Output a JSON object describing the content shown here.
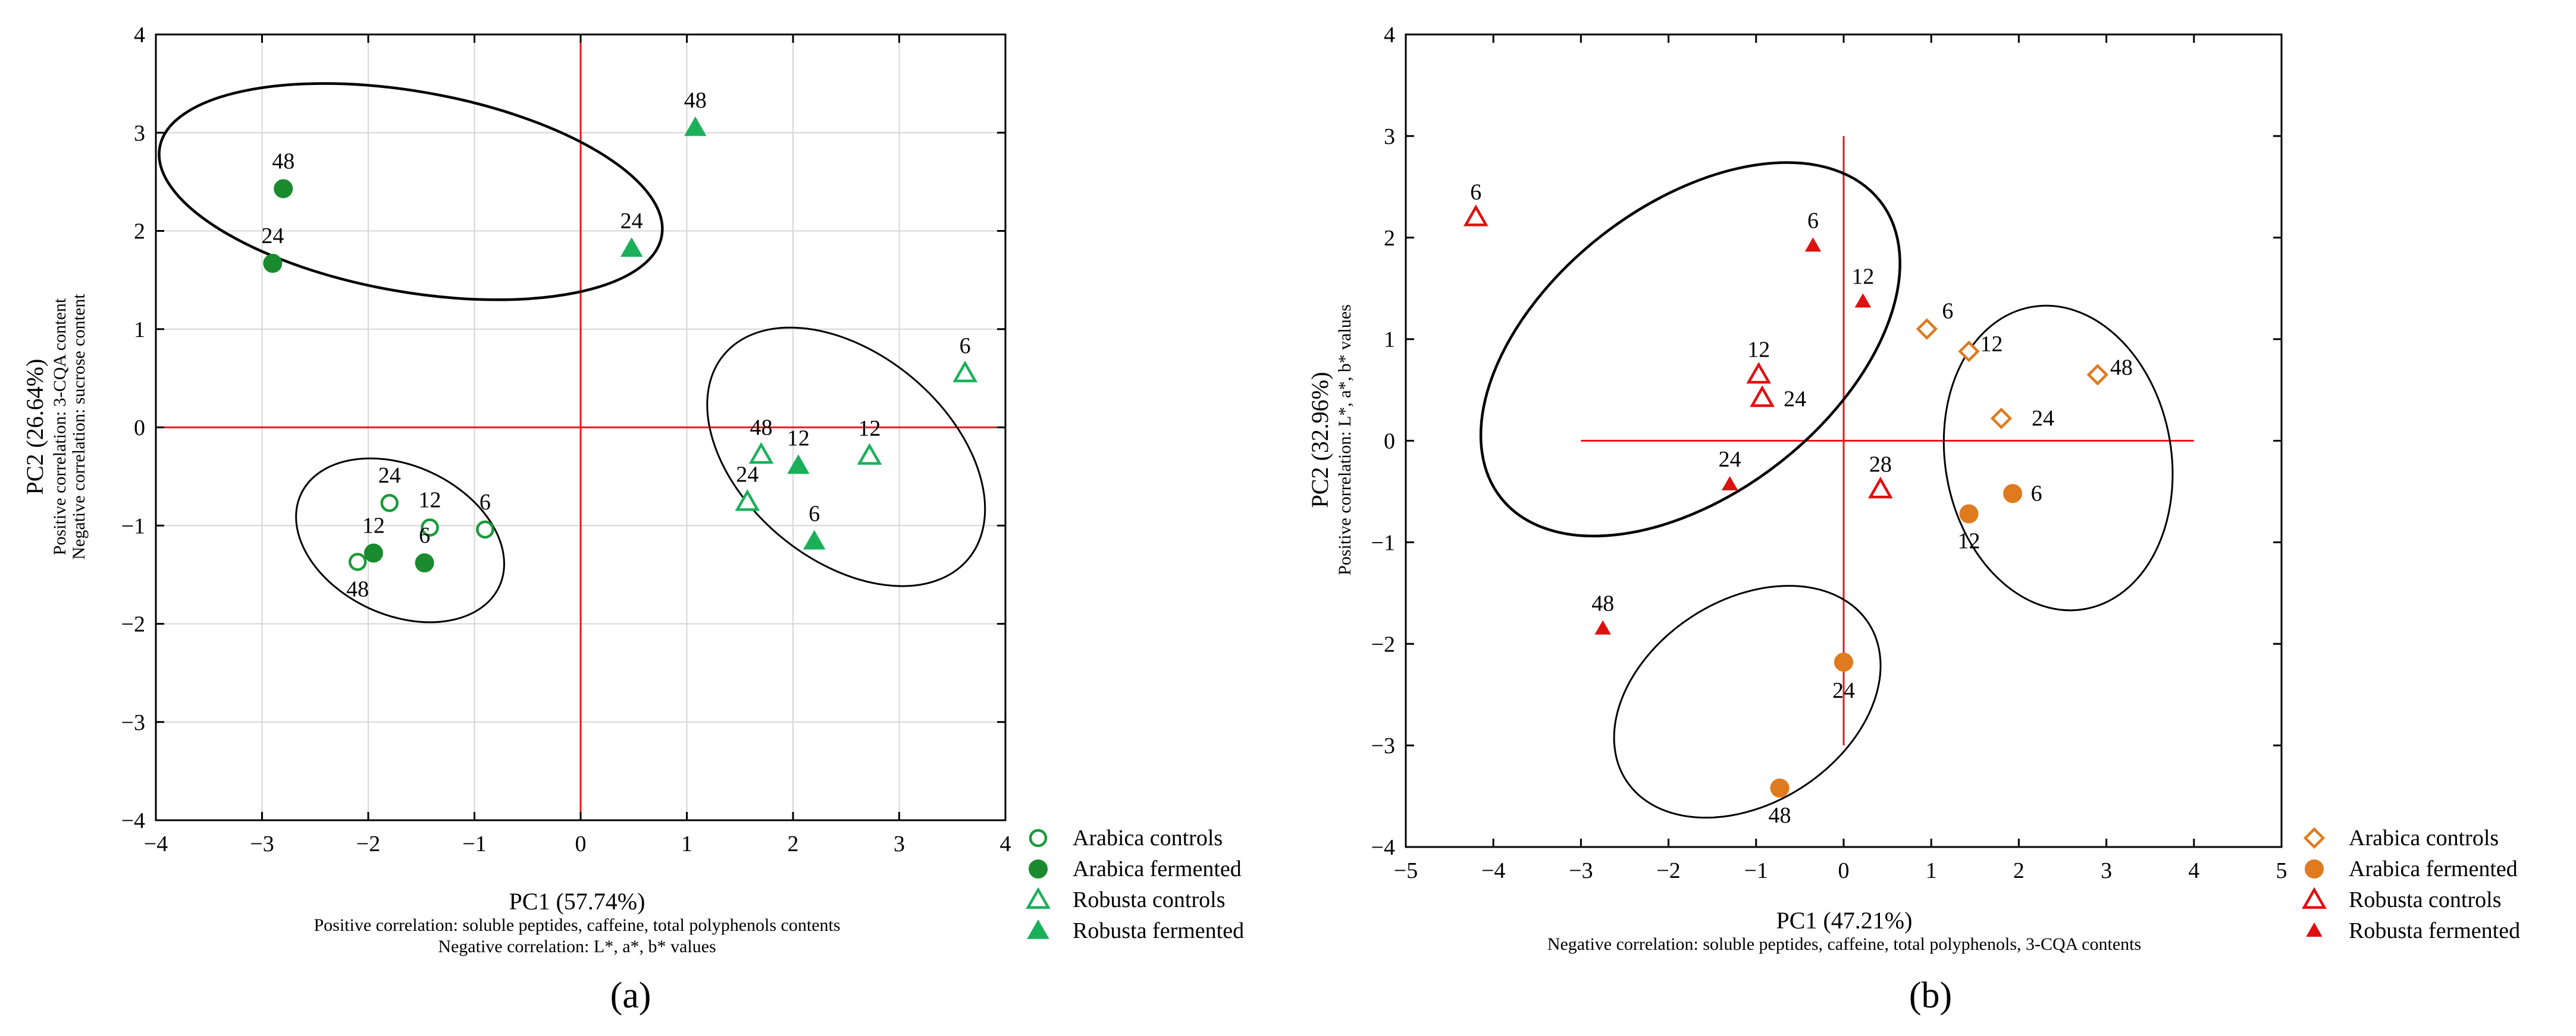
{
  "chart_data": [
    {
      "type": "scatter",
      "panel_label": "(a)",
      "xlabel": "PC1 (57.74%)",
      "ylabel": "PC2 (26.64%)",
      "y_notes": [
        "Positive correlation: 3-CQA content",
        "Negative correlation: sucrose content"
      ],
      "x_notes": [
        "Positive correlation: soluble peptides, caffeine, total polyphenols contents",
        "Negative correlation: L*, a*, b* values"
      ],
      "xlim": [
        -4,
        4
      ],
      "ylim": [
        -4,
        4
      ],
      "xticks": [
        -4,
        -3,
        -2,
        -1,
        0,
        1,
        2,
        3,
        4
      ],
      "yticks": [
        -4,
        -3,
        -2,
        -1,
        0,
        1,
        2,
        3,
        4
      ],
      "xtick_labels": [
        "−4",
        "−3",
        "−2",
        "−1",
        "0",
        "1",
        "2",
        "3",
        "4"
      ],
      "ytick_labels": [
        "−4",
        "−3",
        "−2",
        "−1",
        "0",
        "1",
        "2",
        "3",
        "4"
      ],
      "grid": true,
      "legend_position": "outside-bottom-right",
      "series": [
        {
          "name": "Arabica controls",
          "marker": "circle-open",
          "color": "#1a9a3a",
          "points": [
            {
              "x": -0.9,
              "y": -1.04,
              "label": "6"
            },
            {
              "x": -1.42,
              "y": -1.02,
              "label": "12"
            },
            {
              "x": -1.8,
              "y": -0.77,
              "label": "24"
            },
            {
              "x": -2.1,
              "y": -1.37,
              "label": "48"
            }
          ]
        },
        {
          "name": "Arabica fermented",
          "marker": "circle-filled",
          "color": "#1a8a2e",
          "points": [
            {
              "x": -1.47,
              "y": -1.38,
              "label": "6"
            },
            {
              "x": -1.95,
              "y": -1.28,
              "label": "12"
            },
            {
              "x": -2.9,
              "y": 1.67,
              "label": "24"
            },
            {
              "x": -2.8,
              "y": 2.43,
              "label": "48"
            }
          ]
        },
        {
          "name": "Robusta controls",
          "marker": "triangle-open",
          "color": "#1ab05a",
          "points": [
            {
              "x": 3.62,
              "y": 0.55,
              "label": "6"
            },
            {
              "x": 2.72,
              "y": -0.29,
              "label": "12"
            },
            {
              "x": 1.57,
              "y": -0.76,
              "label": "24"
            },
            {
              "x": 1.7,
              "y": -0.28,
              "label": "48"
            }
          ]
        },
        {
          "name": "Robusta fermented",
          "marker": "triangle-filled",
          "color": "#1ab05a",
          "points": [
            {
              "x": 2.2,
              "y": -1.16,
              "label": "6"
            },
            {
              "x": 2.05,
              "y": -0.39,
              "label": "12"
            },
            {
              "x": 0.48,
              "y": 1.82,
              "label": "24"
            },
            {
              "x": 1.08,
              "y": 3.05,
              "label": "48"
            }
          ]
        }
      ],
      "ellipses": [
        {
          "cx": -1.6,
          "cy": 2.4,
          "rx": 2.4,
          "ry": 1.02,
          "angle_deg": 10
        },
        {
          "cx": -1.7,
          "cy": -1.15,
          "rx": 1.03,
          "ry": 0.76,
          "angle_deg": 25
        },
        {
          "cx": 2.5,
          "cy": -0.3,
          "rx": 1.5,
          "ry": 1.05,
          "angle_deg": 40
        }
      ]
    },
    {
      "type": "scatter",
      "panel_label": "(b)",
      "xlabel": "PC1 (47.21%)",
      "ylabel": "PC2 (32.96%)",
      "y_notes": [
        "Positive correlation: L*, a*, b* values"
      ],
      "x_notes": [
        "Negative correlation: soluble peptides, caffeine, total polyphenols, 3-CQA contents"
      ],
      "xlim": [
        -5,
        5
      ],
      "ylim": [
        -4,
        4
      ],
      "xticks": [
        -5,
        -4,
        -3,
        -2,
        -1,
        0,
        1,
        2,
        3,
        4,
        5
      ],
      "yticks": [
        -4,
        -3,
        -2,
        -1,
        0,
        1,
        2,
        3,
        4
      ],
      "xtick_labels": [
        "−5",
        "−4",
        "−3",
        "−2",
        "−1",
        "0",
        "1",
        "2",
        "3",
        "4",
        "5"
      ],
      "ytick_labels": [
        "−4",
        "−3",
        "−2",
        "−1",
        "0",
        "1",
        "2",
        "3",
        "4"
      ],
      "grid": false,
      "crosshair_xrange": [
        -3,
        4
      ],
      "crosshair_yrange": [
        -3,
        3
      ],
      "legend_position": "outside-bottom-right",
      "series": [
        {
          "name": "Arabica controls",
          "marker": "diamond-open",
          "color": "#e07a1f",
          "points": [
            {
              "x": 0.95,
              "y": 1.1,
              "label": "6"
            },
            {
              "x": 1.43,
              "y": 0.88,
              "label": "12"
            },
            {
              "x": 1.8,
              "y": 0.22,
              "label": "24"
            },
            {
              "x": 2.9,
              "y": 0.65,
              "label": "48"
            }
          ]
        },
        {
          "name": "Arabica fermented",
          "marker": "circle-filled",
          "color": "#e07a1f",
          "points": [
            {
              "x": 1.93,
              "y": -0.52,
              "label": "6"
            },
            {
              "x": 1.43,
              "y": -0.72,
              "label": "12"
            },
            {
              "x": 0.0,
              "y": -2.18,
              "label": "24"
            },
            {
              "x": -0.73,
              "y": -3.42,
              "label": "48"
            }
          ]
        },
        {
          "name": "Robusta controls",
          "marker": "triangle-open",
          "color": "#e01010",
          "points": [
            {
              "x": -4.2,
              "y": 2.2,
              "label": "6"
            },
            {
              "x": -0.97,
              "y": 0.65,
              "label": "12"
            },
            {
              "x": -0.93,
              "y": 0.42,
              "label": "24"
            },
            {
              "x": 0.42,
              "y": -0.48,
              "label": "28"
            }
          ]
        },
        {
          "name": "Robusta fermented",
          "marker": "triangle-small",
          "color": "#e01010",
          "points": [
            {
              "x": -0.35,
              "y": 1.92,
              "label": "6"
            },
            {
              "x": 0.22,
              "y": 1.37,
              "label": "12"
            },
            {
              "x": -1.3,
              "y": -0.43,
              "label": "24"
            },
            {
              "x": -2.75,
              "y": -1.85,
              "label": "48"
            }
          ]
        }
      ],
      "ellipses": [
        {
          "cx": -1.75,
          "cy": 0.9,
          "rx": 2.75,
          "ry": 1.42,
          "angle_deg": -38
        },
        {
          "cx": 2.45,
          "cy": -0.17,
          "rx": 1.29,
          "ry": 1.51,
          "angle_deg": -10
        },
        {
          "cx": -1.1,
          "cy": -2.57,
          "rx": 1.65,
          "ry": 1.0,
          "angle_deg": -33
        }
      ]
    }
  ]
}
